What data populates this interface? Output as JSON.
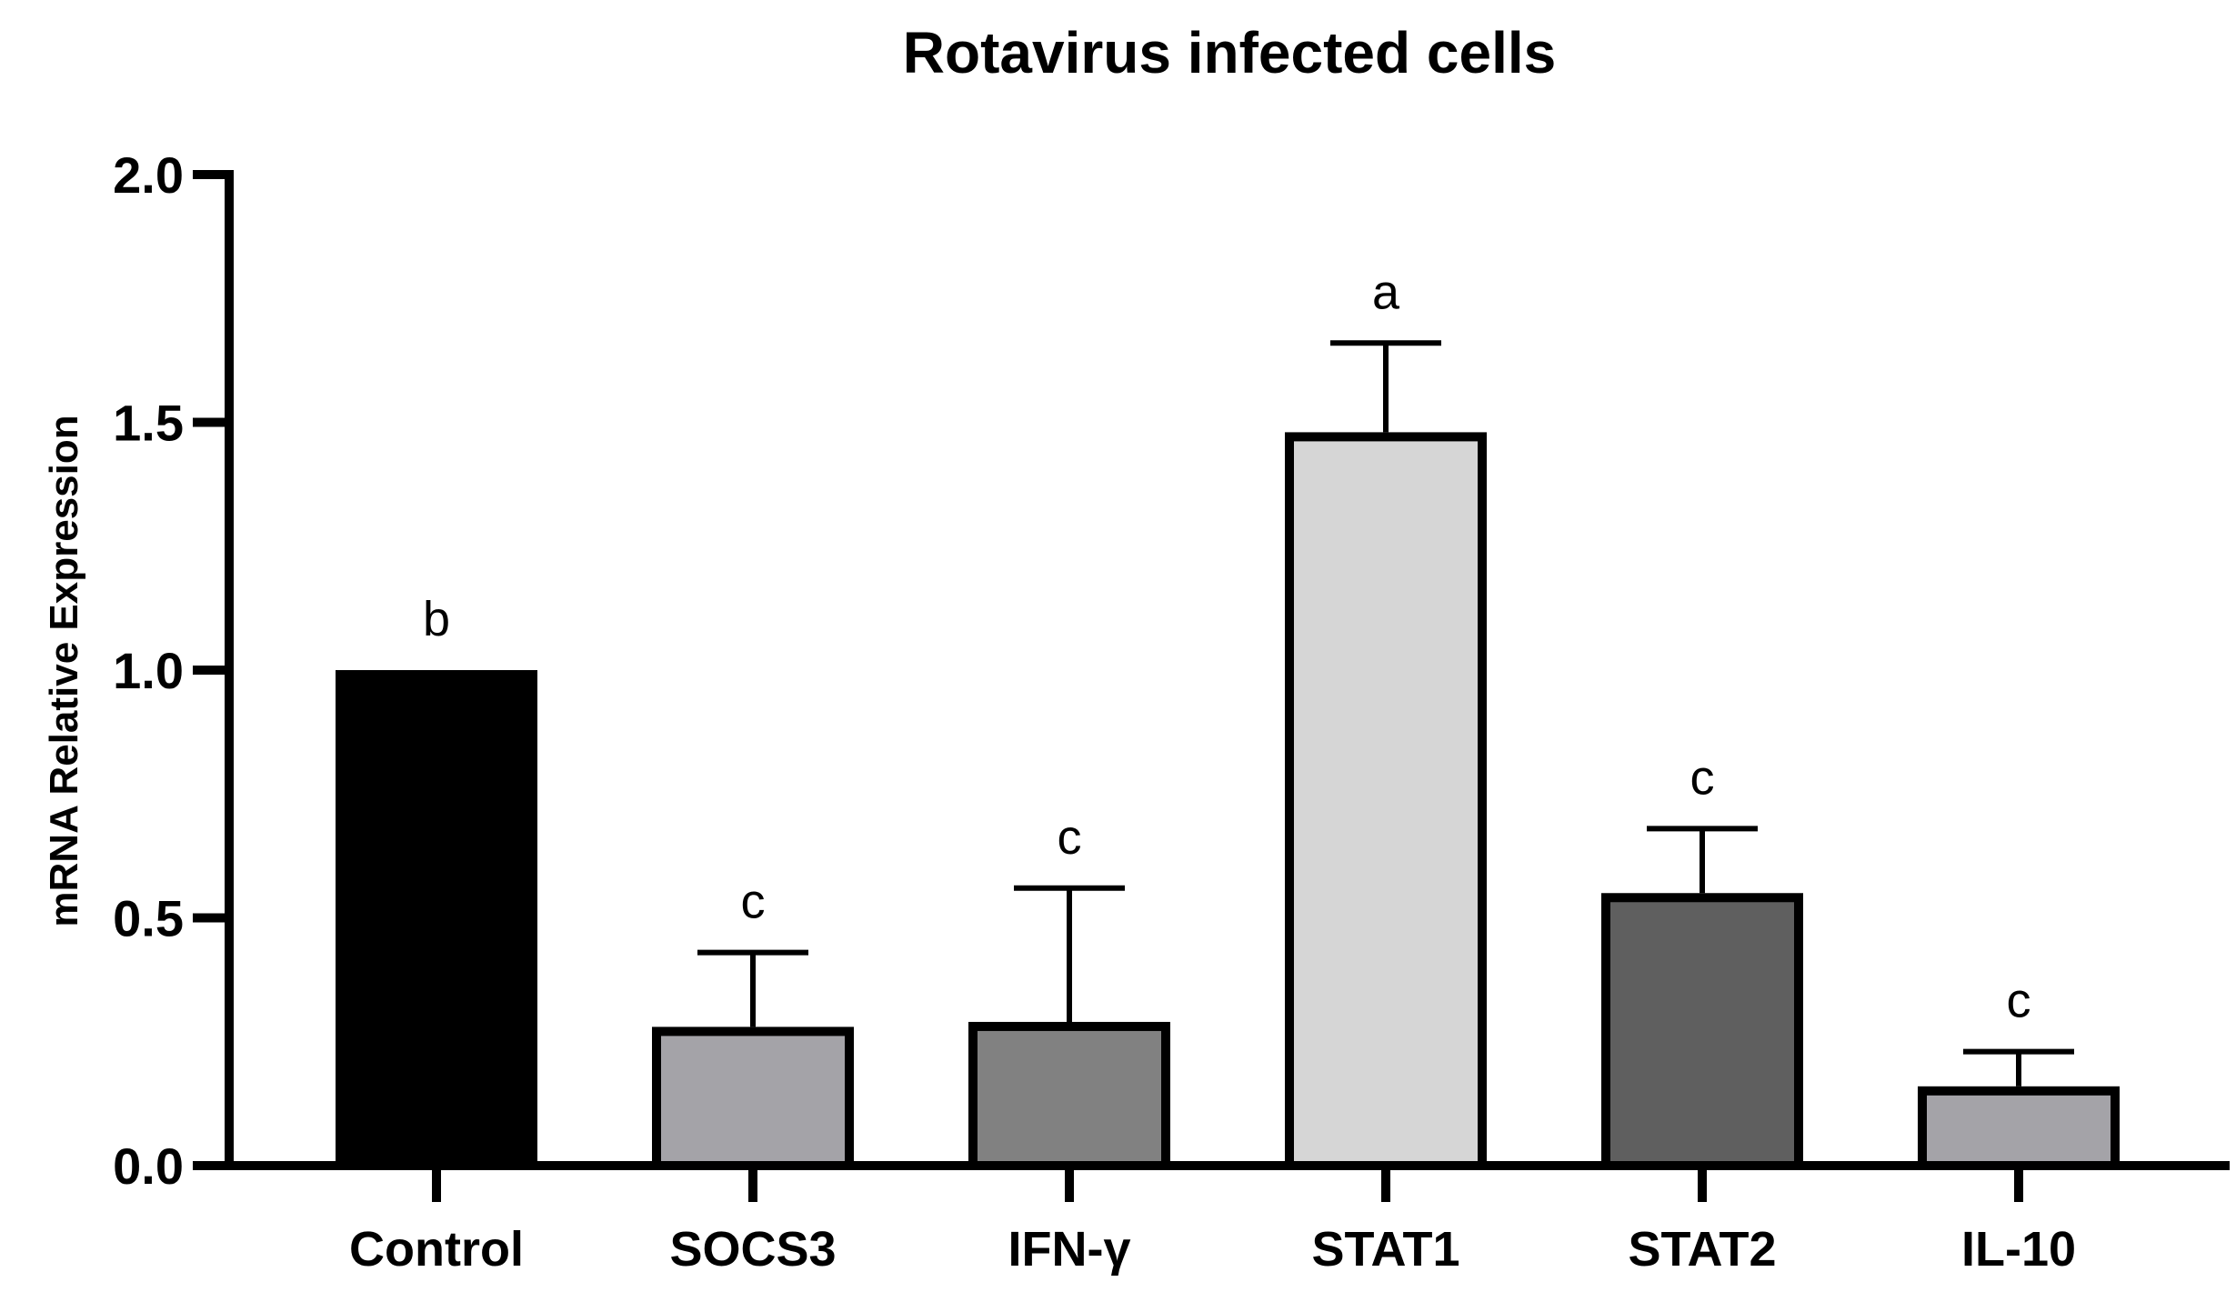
{
  "chart_data": {
    "type": "bar",
    "title": "Rotavirus infected cells",
    "xlabel": "",
    "ylabel": "mRNA Relative Expression",
    "ylim": [
      0,
      2.0
    ],
    "yticks": [
      "0.0",
      "0.5",
      "1.0",
      "1.5",
      "2.0"
    ],
    "categories": [
      "Control",
      "SOCS3",
      "IFN-γ",
      "STAT1",
      "STAT2",
      "IL-10"
    ],
    "values": [
      1.0,
      0.28,
      0.29,
      1.48,
      0.55,
      0.16
    ],
    "errors": [
      0,
      0.15,
      0.27,
      0.18,
      0.13,
      0.07
    ],
    "significance": [
      "b",
      "c",
      "c",
      "a",
      "c",
      "c"
    ],
    "colors": [
      "#000000",
      "#a4a3a8",
      "#818181",
      "#d6d6d6",
      "#5f5f5f",
      "#a4a3a8"
    ],
    "grid": false,
    "legend": "none"
  }
}
